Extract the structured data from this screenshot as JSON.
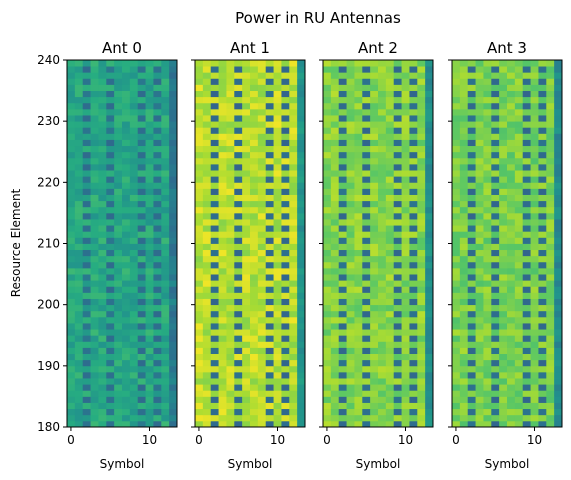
{
  "chart_data": {
    "type": "heatmap",
    "title": "Power in RU Antennas",
    "ylabel": "Resource Element",
    "xlabel": "Symbol",
    "xlim": [
      -0.5,
      13.5
    ],
    "ylim": [
      180,
      240
    ],
    "x_ticks": [
      0,
      10
    ],
    "y_ticks": [
      180,
      190,
      200,
      210,
      220,
      230,
      240
    ],
    "symbols": [
      0,
      1,
      2,
      3,
      4,
      5,
      6,
      7,
      8,
      9,
      10,
      11,
      12,
      13
    ],
    "resource_elements": [
      180,
      181,
      182,
      183,
      184,
      185,
      186,
      187,
      188,
      189,
      190,
      191,
      192,
      193,
      194,
      195,
      196,
      197,
      198,
      199,
      200,
      201,
      202,
      203,
      204,
      205,
      206,
      207,
      208,
      209,
      210,
      211,
      212,
      213,
      214,
      215,
      216,
      217,
      218,
      219,
      220,
      221,
      222,
      223,
      224,
      225,
      226,
      227,
      228,
      229,
      230,
      231,
      232,
      233,
      234,
      235,
      236,
      237,
      238,
      239
    ],
    "colormap": "viridis",
    "pilot_symbols": [
      2,
      5,
      9,
      11
    ],
    "panels": [
      {
        "title": "Ant 0",
        "base_level": 0.6,
        "pilot_level": 0.38,
        "last_symbol_level": 0.42
      },
      {
        "title": "Ant 1",
        "base_level": 0.9,
        "pilot_level": 0.35,
        "last_symbol_level": 0.52
      },
      {
        "title": "Ant 2",
        "base_level": 0.82,
        "pilot_level": 0.36,
        "last_symbol_level": 0.5
      },
      {
        "title": "Ant 3",
        "base_level": 0.8,
        "pilot_level": 0.36,
        "last_symbol_level": 0.48
      }
    ]
  }
}
